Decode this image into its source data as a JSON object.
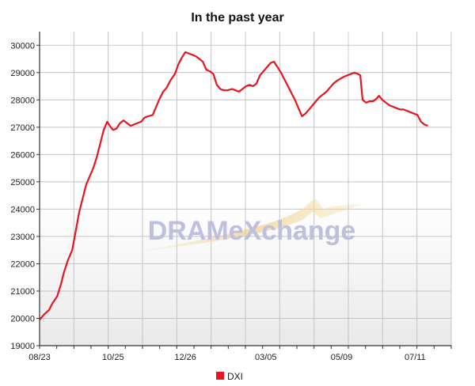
{
  "chart_data": {
    "type": "line",
    "title": "In the past year",
    "xlabel": "",
    "ylabel": "",
    "ylim": [
      19000,
      30500
    ],
    "yticks": [
      19000,
      20000,
      21000,
      22000,
      23000,
      24000,
      25000,
      26000,
      27000,
      28000,
      29000,
      30000
    ],
    "xticks": [
      {
        "label": "08/23",
        "x": 0
      },
      {
        "label": "10/25",
        "x": 63
      },
      {
        "label": "12/26",
        "x": 125
      },
      {
        "label": "03/05",
        "x": 194
      },
      {
        "label": "05/09",
        "x": 259
      },
      {
        "label": "07/11",
        "x": 322
      }
    ],
    "xlim": [
      0,
      353
    ],
    "grid": true,
    "legend": {
      "placement": "bottom-center",
      "entries": [
        {
          "name": "DXI",
          "color": "#e8141e"
        }
      ]
    },
    "watermark": "DRAMeXchange",
    "series": [
      {
        "name": "DXI",
        "color": "#e8141e",
        "points": [
          [
            0,
            19950
          ],
          [
            4,
            20150
          ],
          [
            8,
            20300
          ],
          [
            11,
            20550
          ],
          [
            15,
            20800
          ],
          [
            18,
            21200
          ],
          [
            21,
            21700
          ],
          [
            24,
            22100
          ],
          [
            28,
            22500
          ],
          [
            31,
            23200
          ],
          [
            34,
            23900
          ],
          [
            37,
            24400
          ],
          [
            40,
            24900
          ],
          [
            43,
            25200
          ],
          [
            46,
            25500
          ],
          [
            49,
            25900
          ],
          [
            52,
            26400
          ],
          [
            55,
            26900
          ],
          [
            58,
            27200
          ],
          [
            61,
            27000
          ],
          [
            63,
            26900
          ],
          [
            66,
            26950
          ],
          [
            69,
            27150
          ],
          [
            72,
            27250
          ],
          [
            75,
            27150
          ],
          [
            78,
            27050
          ],
          [
            81,
            27100
          ],
          [
            84,
            27150
          ],
          [
            87,
            27200
          ],
          [
            90,
            27350
          ],
          [
            93,
            27400
          ],
          [
            97,
            27450
          ],
          [
            100,
            27750
          ],
          [
            103,
            28050
          ],
          [
            106,
            28300
          ],
          [
            109,
            28450
          ],
          [
            112,
            28700
          ],
          [
            116,
            28950
          ],
          [
            119,
            29300
          ],
          [
            122,
            29550
          ],
          [
            125,
            29750
          ],
          [
            128,
            29700
          ],
          [
            131,
            29650
          ],
          [
            134,
            29600
          ],
          [
            137,
            29500
          ],
          [
            140,
            29400
          ],
          [
            143,
            29100
          ],
          [
            146,
            29050
          ],
          [
            149,
            28950
          ],
          [
            152,
            28550
          ],
          [
            155,
            28400
          ],
          [
            158,
            28350
          ],
          [
            161,
            28350
          ],
          [
            165,
            28400
          ],
          [
            168,
            28350
          ],
          [
            171,
            28300
          ],
          [
            174,
            28400
          ],
          [
            177,
            28500
          ],
          [
            180,
            28550
          ],
          [
            183,
            28500
          ],
          [
            186,
            28600
          ],
          [
            189,
            28900
          ],
          [
            192,
            29050
          ],
          [
            195,
            29200
          ],
          [
            198,
            29350
          ],
          [
            201,
            29400
          ],
          [
            204,
            29200
          ],
          [
            207,
            29000
          ],
          [
            210,
            28750
          ],
          [
            213,
            28500
          ],
          [
            216,
            28250
          ],
          [
            219,
            28000
          ],
          [
            222,
            27700
          ],
          [
            225,
            27400
          ],
          [
            228,
            27500
          ],
          [
            231,
            27650
          ],
          [
            234,
            27800
          ],
          [
            237,
            27950
          ],
          [
            240,
            28100
          ],
          [
            243,
            28200
          ],
          [
            246,
            28300
          ],
          [
            249,
            28450
          ],
          [
            252,
            28600
          ],
          [
            255,
            28700
          ],
          [
            258,
            28780
          ],
          [
            261,
            28850
          ],
          [
            264,
            28900
          ],
          [
            267,
            28950
          ],
          [
            270,
            29000
          ],
          [
            273,
            28950
          ],
          [
            275,
            28900
          ],
          [
            277,
            28000
          ],
          [
            280,
            27900
          ],
          [
            283,
            27950
          ],
          [
            286,
            27950
          ],
          [
            289,
            28050
          ],
          [
            291,
            28150
          ],
          [
            294,
            28000
          ],
          [
            297,
            27900
          ],
          [
            300,
            27800
          ],
          [
            303,
            27750
          ],
          [
            306,
            27700
          ],
          [
            309,
            27650
          ],
          [
            312,
            27650
          ],
          [
            315,
            27600
          ],
          [
            318,
            27550
          ],
          [
            321,
            27500
          ],
          [
            324,
            27450
          ],
          [
            327,
            27200
          ],
          [
            330,
            27100
          ],
          [
            333,
            27050
          ]
        ]
      }
    ]
  }
}
